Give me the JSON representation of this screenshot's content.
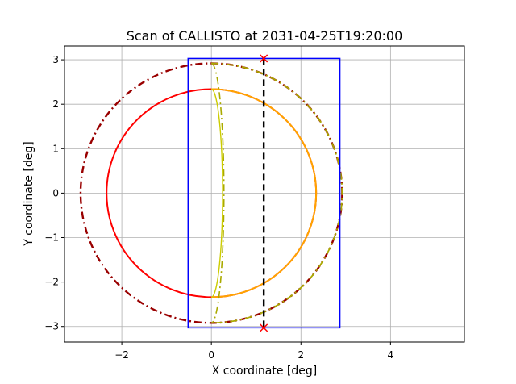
{
  "chart_data": {
    "type": "line",
    "title": "Scan of CALLISTO at 2031-04-25T19:20:00",
    "xlabel": "X coordinate [deg]",
    "ylabel": "Y coordinate [deg]",
    "xlim": [
      -3.28,
      5.65
    ],
    "ylim": [
      -3.35,
      3.31
    ],
    "xticks": [
      -2,
      0,
      2,
      4
    ],
    "yticks": [
      -3,
      -2,
      -1,
      0,
      1,
      2,
      3
    ],
    "xtick_labels": [
      "−2",
      "0",
      "2",
      "4"
    ],
    "ytick_labels": [
      "−3",
      "−2",
      "−1",
      "0",
      "1",
      "2",
      "3"
    ],
    "grid": true,
    "legend": "none",
    "series": [
      {
        "kind": "circle",
        "cx": 0,
        "cy": 0,
        "r": 2.92,
        "color": "#990000",
        "style": "dashdot",
        "width": 2.4
      },
      {
        "kind": "circle",
        "cx": 0,
        "cy": 0,
        "r": 2.34,
        "color": "#ff0000",
        "style": "solid",
        "width": 2.0
      },
      {
        "kind": "right_half_circle",
        "cx": 0,
        "cy": 0,
        "r": 2.34,
        "color": "#ffa500",
        "style": "solid",
        "width": 2.0
      },
      {
        "kind": "terminator",
        "r": 2.34,
        "bulge": 0.25,
        "color": "#cccc00",
        "style": "solid",
        "width": 1.4
      },
      {
        "kind": "right_half_circle",
        "cx": 0,
        "cy": 0,
        "r": 2.92,
        "color": "#aaaa00",
        "style": "dashdot",
        "width": 1.8
      },
      {
        "kind": "terminator",
        "r": 2.92,
        "bulge": 0.28,
        "color": "#aaaa00",
        "style": "dashdot",
        "width": 1.6
      },
      {
        "kind": "rect",
        "x0": -0.52,
        "x1": 2.87,
        "y0": -3.03,
        "y1": 3.03,
        "color": "#0000ff",
        "style": "solid",
        "width": 1.5
      },
      {
        "kind": "segment",
        "x": [
          1.17,
          1.17
        ],
        "y": [
          3.03,
          -3.03
        ],
        "color": "#000000",
        "style": "dashed",
        "width": 2.4
      }
    ],
    "markers": [
      {
        "x": 1.17,
        "y": 3.03,
        "symbol": "x",
        "color": "#ff0000"
      },
      {
        "x": 1.17,
        "y": -3.03,
        "symbol": "x",
        "color": "#ff0000"
      }
    ]
  }
}
